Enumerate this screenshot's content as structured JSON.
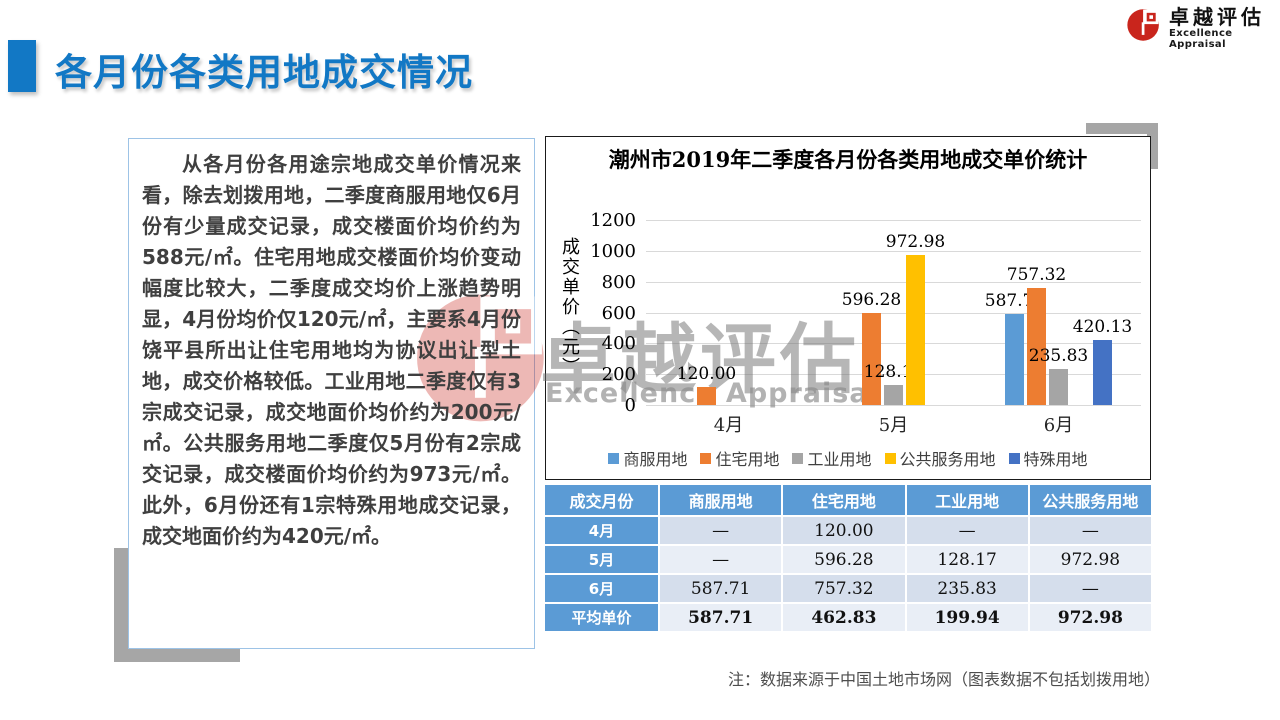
{
  "slide": {
    "title": "各月份各类用地成交情况",
    "logo": {
      "cn": "卓越评估",
      "en": "Excellence Appraisal"
    },
    "watermark": {
      "cn": "卓越评估",
      "en": "Excellence Appraisal"
    },
    "note": "注：数据来源于中国土地市场网（图表数据不包括划拨用地）"
  },
  "analysis_text": "从各月份各用途宗地成交单价情况来看，除去划拨用地，二季度商服用地仅6月份有少量成交记录，成交楼面价均价约为588元/㎡。住宅用地成交楼面价均价变动幅度比较大，二季度成交均价上涨趋势明显，4月份均价仅120元/㎡，主要系4月份饶平县所出让住宅用地均为协议出让型土地，成交价格较低。工业用地二季度仅有3宗成交记录，成交地面价均价约为200元/㎡。公共服务用地二季度仅5月份有2宗成交记录，成交楼面价均价约为973元/㎡。此外，6月份还有1宗特殊用地成交记录，成交地面价约为420元/㎡。",
  "chart_data": {
    "type": "bar",
    "title": "潮州市2019年二季度各月份各类用地成交单价统计",
    "ylabel": "成交单价（元）",
    "categories": [
      "4月",
      "5月",
      "6月"
    ],
    "series": [
      {
        "name": "商服用地",
        "color": "#5B9BD5",
        "values": [
          null,
          null,
          587.71
        ]
      },
      {
        "name": "住宅用地",
        "color": "#ED7D31",
        "values": [
          120.0,
          596.28,
          757.32
        ]
      },
      {
        "name": "工业用地",
        "color": "#A5A5A5",
        "values": [
          null,
          128.17,
          235.83
        ]
      },
      {
        "name": "公共服务用地",
        "color": "#FFC000",
        "values": [
          null,
          972.98,
          null
        ]
      },
      {
        "name": "特殊用地",
        "color": "#4472C4",
        "values": [
          null,
          null,
          420.13
        ]
      }
    ],
    "ylim": [
      0,
      1200
    ],
    "yticks": [
      0,
      200,
      400,
      600,
      800,
      1000,
      1200
    ],
    "grid": true,
    "legend_position": "bottom"
  },
  "table": {
    "headers": [
      "成交月份",
      "商服用地",
      "住宅用地",
      "工业用地",
      "公共服务用地"
    ],
    "rows": [
      {
        "label": "4月",
        "values": [
          "—",
          "120.00",
          "—",
          "—"
        ],
        "bold": false
      },
      {
        "label": "5月",
        "values": [
          "—",
          "596.28",
          "128.17",
          "972.98"
        ],
        "bold": false
      },
      {
        "label": "6月",
        "values": [
          "587.71",
          "757.32",
          "235.83",
          "—"
        ],
        "bold": false
      },
      {
        "label": "平均单价",
        "values": [
          "587.71",
          "462.83",
          "199.94",
          "972.98"
        ],
        "bold": true
      }
    ]
  },
  "colors": {
    "accent_blue": "#1278C5",
    "table_header": "#5B9BD5",
    "logo_red": "#C9251C",
    "shadow_gray": "#A6A6A6"
  }
}
